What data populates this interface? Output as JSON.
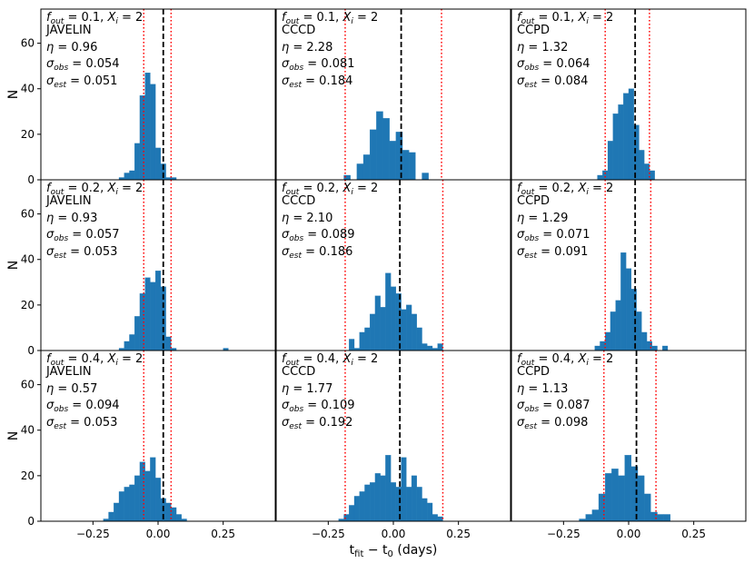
{
  "chart_data": {
    "type": "bar",
    "subtype": "histogram-grid",
    "xlabel": "t_fit − t_0 (days)",
    "ylabel": "N",
    "xlim": [
      -0.45,
      0.45
    ],
    "ylim": [
      0,
      75
    ],
    "xticks": [
      -0.25,
      0.0,
      0.25
    ],
    "xtick_labels": [
      "−0.25",
      "0.00",
      "0.25"
    ],
    "yticks": [
      0,
      20,
      40,
      60
    ],
    "bar_color": "#1f77b4",
    "median_line_color": "#000000",
    "sigma_line_color": "#ff0000",
    "panels": [
      {
        "f_out": "0.1",
        "X_i": "2",
        "method": "JAVELIN",
        "eta": "0.96",
        "sigma_obs": "0.054",
        "sigma_est": "0.051",
        "median": 0.02,
        "sigma_lines": [
          -0.055,
          0.05
        ],
        "bin_start": -0.15,
        "bin_width": 0.02,
        "counts": [
          1,
          3,
          4,
          16,
          37,
          47,
          42,
          14,
          7,
          1,
          1
        ]
      },
      {
        "f_out": "0.1",
        "X_i": "2",
        "method": "CCCD",
        "eta": "2.28",
        "sigma_obs": "0.081",
        "sigma_est": "0.184",
        "median": 0.03,
        "sigma_lines": [
          -0.185,
          0.185
        ],
        "bin_start": -0.19,
        "bin_width": 0.025,
        "counts": [
          2,
          0,
          7,
          11,
          22,
          30,
          27,
          17,
          21,
          13,
          12,
          0,
          3
        ]
      },
      {
        "f_out": "0.1",
        "X_i": "2",
        "method": "CCPD",
        "eta": "1.32",
        "sigma_obs": "0.064",
        "sigma_est": "0.084",
        "median": 0.025,
        "sigma_lines": [
          -0.09,
          0.08
        ],
        "bin_start": -0.12,
        "bin_width": 0.02,
        "counts": [
          2,
          4,
          17,
          29,
          33,
          38,
          40,
          24,
          13,
          7,
          4
        ]
      },
      {
        "f_out": "0.2",
        "X_i": "2",
        "method": "JAVELIN",
        "eta": "0.93",
        "sigma_obs": "0.057",
        "sigma_est": "0.053",
        "median": 0.02,
        "sigma_lines": [
          -0.055,
          0.05
        ],
        "bin_start": -0.15,
        "bin_width": 0.02,
        "counts": [
          1,
          4,
          7,
          15,
          25,
          32,
          30,
          35,
          28,
          6,
          1,
          0,
          0,
          0,
          0,
          0,
          0,
          0,
          0,
          0,
          1
        ]
      },
      {
        "f_out": "0.2",
        "X_i": "2",
        "method": "CCCD",
        "eta": "2.10",
        "sigma_obs": "0.089",
        "sigma_est": "0.186",
        "median": 0.025,
        "sigma_lines": [
          -0.185,
          0.19
        ],
        "bin_start": -0.17,
        "bin_width": 0.02,
        "counts": [
          5,
          1,
          8,
          10,
          16,
          24,
          19,
          34,
          28,
          25,
          18,
          20,
          16,
          10,
          3,
          2,
          1,
          3
        ]
      },
      {
        "f_out": "0.2",
        "X_i": "2",
        "method": "CCPD",
        "eta": "1.29",
        "sigma_obs": "0.071",
        "sigma_est": "0.091",
        "median": 0.025,
        "sigma_lines": [
          -0.09,
          0.085
        ],
        "bin_start": -0.13,
        "bin_width": 0.02,
        "counts": [
          2,
          4,
          8,
          17,
          22,
          43,
          36,
          27,
          17,
          8,
          4,
          2,
          0,
          2
        ]
      },
      {
        "f_out": "0.4",
        "X_i": "2",
        "method": "JAVELIN",
        "eta": "0.57",
        "sigma_obs": "0.094",
        "sigma_est": "0.053",
        "median": 0.02,
        "sigma_lines": [
          -0.055,
          0.05
        ],
        "bin_start": -0.21,
        "bin_width": 0.02,
        "counts": [
          1,
          4,
          8,
          13,
          15,
          16,
          20,
          26,
          22,
          28,
          19,
          10,
          8,
          6,
          3,
          1
        ]
      },
      {
        "f_out": "0.4",
        "X_i": "2",
        "method": "CCCD",
        "eta": "1.77",
        "sigma_obs": "0.109",
        "sigma_est": "0.192",
        "median": 0.025,
        "sigma_lines": [
          -0.185,
          0.19
        ],
        "bin_start": -0.21,
        "bin_width": 0.02,
        "counts": [
          1,
          3,
          7,
          11,
          13,
          16,
          17,
          21,
          20,
          29,
          17,
          15,
          28,
          15,
          20,
          15,
          10,
          8,
          3,
          2
        ]
      },
      {
        "f_out": "0.4",
        "X_i": "2",
        "method": "CCPD",
        "eta": "1.13",
        "sigma_obs": "0.087",
        "sigma_est": "0.098",
        "median": 0.03,
        "sigma_lines": [
          -0.095,
          0.105
        ],
        "bin_start": -0.19,
        "bin_width": 0.025,
        "counts": [
          1,
          3,
          5,
          12,
          21,
          23,
          20,
          29,
          24,
          20,
          12,
          4,
          3,
          3
        ]
      }
    ]
  }
}
